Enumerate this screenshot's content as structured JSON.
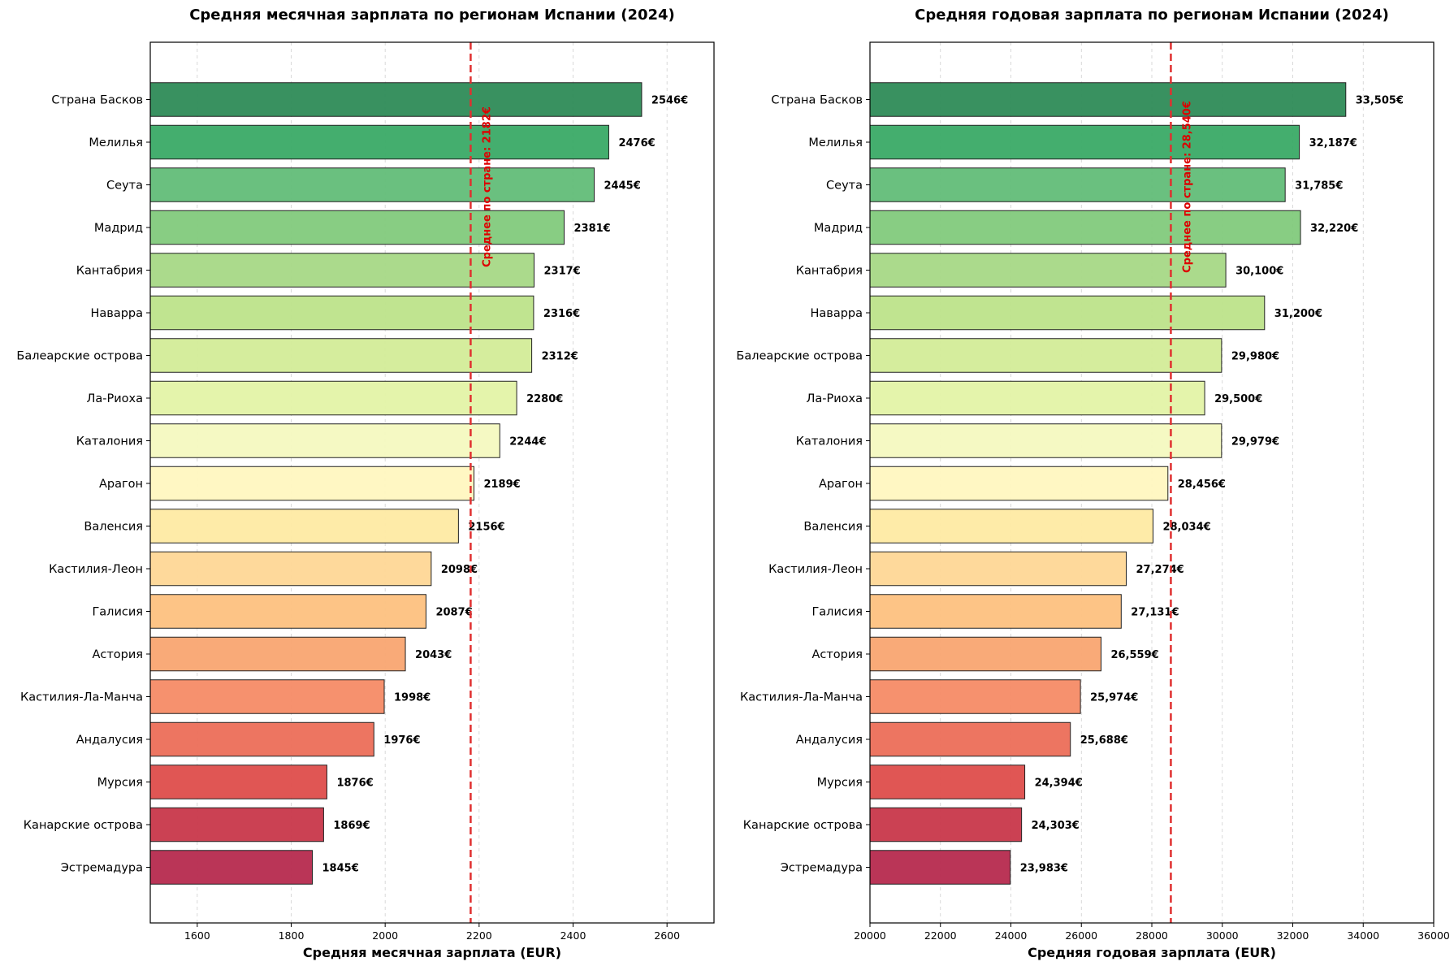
{
  "chart_data": [
    {
      "type": "bar",
      "orientation": "horizontal",
      "title": "Средняя месячная зарплата по регионам Испании (2024)",
      "xlabel": "Средняя месячная зарплата (EUR)",
      "ylabel": "",
      "xlim": [
        1500,
        2700
      ],
      "xticks": [
        1600,
        1800,
        2000,
        2200,
        2400,
        2600
      ],
      "xtick_labels": [
        "1600",
        "1800",
        "2000",
        "2200",
        "2400",
        "2600"
      ],
      "grid": "x, dashed",
      "categories": [
        "Страна Басков",
        "Мелилья",
        "Сеута",
        "Мадрид",
        "Кантабрия",
        "Наварра",
        "Балеарские острова",
        "Ла-Риоха",
        "Каталония",
        "Арагон",
        "Валенсия",
        "Кастилия-Леон",
        "Галисия",
        "Астория",
        "Кастилия-Ла-Манча",
        "Андалусия",
        "Мурсия",
        "Канарские острова",
        "Эстремадура"
      ],
      "values": [
        2546,
        2476,
        2445,
        2381,
        2317,
        2316,
        2312,
        2280,
        2244,
        2189,
        2156,
        2098,
        2087,
        2043,
        1998,
        1976,
        1876,
        1869,
        1845
      ],
      "value_labels": [
        "2546€",
        "2476€",
        "2445€",
        "2381€",
        "2317€",
        "2316€",
        "2312€",
        "2280€",
        "2244€",
        "2189€",
        "2156€",
        "2098€",
        "2087€",
        "2043€",
        "1998€",
        "1976€",
        "1876€",
        "1869€",
        "1845€"
      ],
      "mean": 2182,
      "mean_label": "Среднее по стране: 2182€"
    },
    {
      "type": "bar",
      "orientation": "horizontal",
      "title": "Средняя годовая зарплата по регионам Испании (2024)",
      "xlabel": "Средняя годовая зарплата (EUR)",
      "ylabel": "",
      "xlim": [
        20000,
        36000
      ],
      "xticks": [
        20000,
        22000,
        24000,
        26000,
        28000,
        30000,
        32000,
        34000,
        36000
      ],
      "xtick_labels": [
        "20000",
        "22000",
        "24000",
        "26000",
        "28000",
        "30000",
        "32000",
        "34000",
        "36000"
      ],
      "grid": "x, dashed",
      "categories": [
        "Страна Басков",
        "Мелилья",
        "Сеута",
        "Мадрид",
        "Кантабрия",
        "Наварра",
        "Балеарские острова",
        "Ла-Риоха",
        "Каталония",
        "Арагон",
        "Валенсия",
        "Кастилия-Леон",
        "Галисия",
        "Астория",
        "Кастилия-Ла-Манча",
        "Андалусия",
        "Мурсия",
        "Канарские острова",
        "Эстремадура"
      ],
      "values": [
        33505,
        32187,
        31785,
        32220,
        30100,
        31200,
        29980,
        29500,
        29979,
        28456,
        28034,
        27274,
        27131,
        26559,
        25974,
        25688,
        24394,
        24303,
        23983
      ],
      "value_labels": [
        "33,505€",
        "32,187€",
        "31,785€",
        "32,220€",
        "30,100€",
        "31,200€",
        "29,980€",
        "29,500€",
        "29,979€",
        "28,456€",
        "28,034€",
        "27,274€",
        "27,131€",
        "26,559€",
        "25,974€",
        "25,688€",
        "24,394€",
        "24,303€",
        "23,983€"
      ],
      "mean": 28540,
      "mean_label": "Среднее по стране: 28,540€"
    }
  ],
  "colors": {
    "bars": [
      "#2e8b57",
      "#3aaa66",
      "#62bd78",
      "#82ca7c",
      "#a6d886",
      "#bde38a",
      "#d3ec98",
      "#e3f3a6",
      "#f4f9c0",
      "#fff7c0",
      "#feeaa3",
      "#fed796",
      "#fdc17f",
      "#f9a571",
      "#f58b66",
      "#ec6e58",
      "#de4d4b",
      "#c8374a",
      "#b62a4e"
    ],
    "mean_line": "#e03030",
    "mean_text": "#dd0000",
    "grid": "#d0d0d0"
  }
}
